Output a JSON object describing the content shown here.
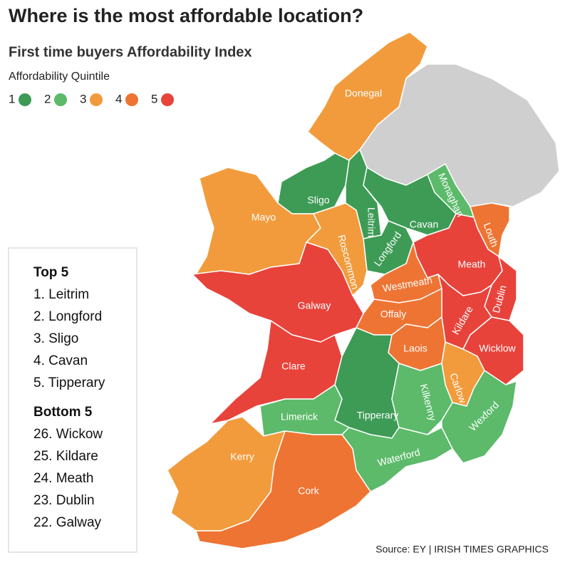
{
  "header": {
    "title": "Where is the most affordable location?",
    "subtitle": "First time buyers Affordability Index"
  },
  "legend": {
    "title": "Affordability Quintile",
    "items": [
      {
        "label": "1",
        "color": "#3d9b55"
      },
      {
        "label": "2",
        "color": "#5cba6a"
      },
      {
        "label": "3",
        "color": "#f29b3c"
      },
      {
        "label": "4",
        "color": "#ee7433"
      },
      {
        "label": "5",
        "color": "#e7433b"
      }
    ]
  },
  "counties": [
    {
      "label": "Donegal",
      "quintile": 3
    },
    {
      "label": "Sligo",
      "quintile": 1
    },
    {
      "label": "Leitrim",
      "quintile": 1
    },
    {
      "label": "Cavan",
      "quintile": 1
    },
    {
      "label": "Monaghan",
      "quintile": 2
    },
    {
      "label": "Louth",
      "quintile": 4
    },
    {
      "label": "Longford",
      "quintile": 1
    },
    {
      "label": "Mayo",
      "quintile": 3
    },
    {
      "label": "Roscommon",
      "quintile": 3
    },
    {
      "label": "Galway",
      "quintile": 5
    },
    {
      "label": "Clare",
      "quintile": 5
    },
    {
      "label": "Meath",
      "quintile": 5
    },
    {
      "label": "Westmeath",
      "quintile": 4
    },
    {
      "label": "Dublin",
      "quintile": 5
    },
    {
      "label": "Kildare",
      "quintile": 5
    },
    {
      "label": "Offaly",
      "quintile": 4
    },
    {
      "label": "Wicklow",
      "quintile": 5
    },
    {
      "label": "Laois",
      "quintile": 4
    },
    {
      "label": "Carlow",
      "quintile": 3
    },
    {
      "label": "Tipperary",
      "quintile": 1
    },
    {
      "label": "Limerick",
      "quintile": 2
    },
    {
      "label": "Kilkenny",
      "quintile": 2
    },
    {
      "label": "Wexford",
      "quintile": 2
    },
    {
      "label": "Waterford",
      "quintile": 2
    },
    {
      "label": "Kerry",
      "quintile": 3
    },
    {
      "label": "Cork",
      "quintile": 4
    }
  ],
  "rankings": {
    "top_title": "Top 5",
    "top": [
      "1. Leitrim",
      "2. Longford",
      "3. Sligo",
      "4. Cavan",
      "5. Tipperary"
    ],
    "bottom_title": "Bottom 5",
    "bottom": [
      "26. Wickow",
      "25. Kildare",
      "24. Meath",
      "23. Dublin",
      "22. Galway"
    ]
  },
  "footer": {
    "source": "Source: EY  |  IRISH TIMES GRAPHICS"
  }
}
